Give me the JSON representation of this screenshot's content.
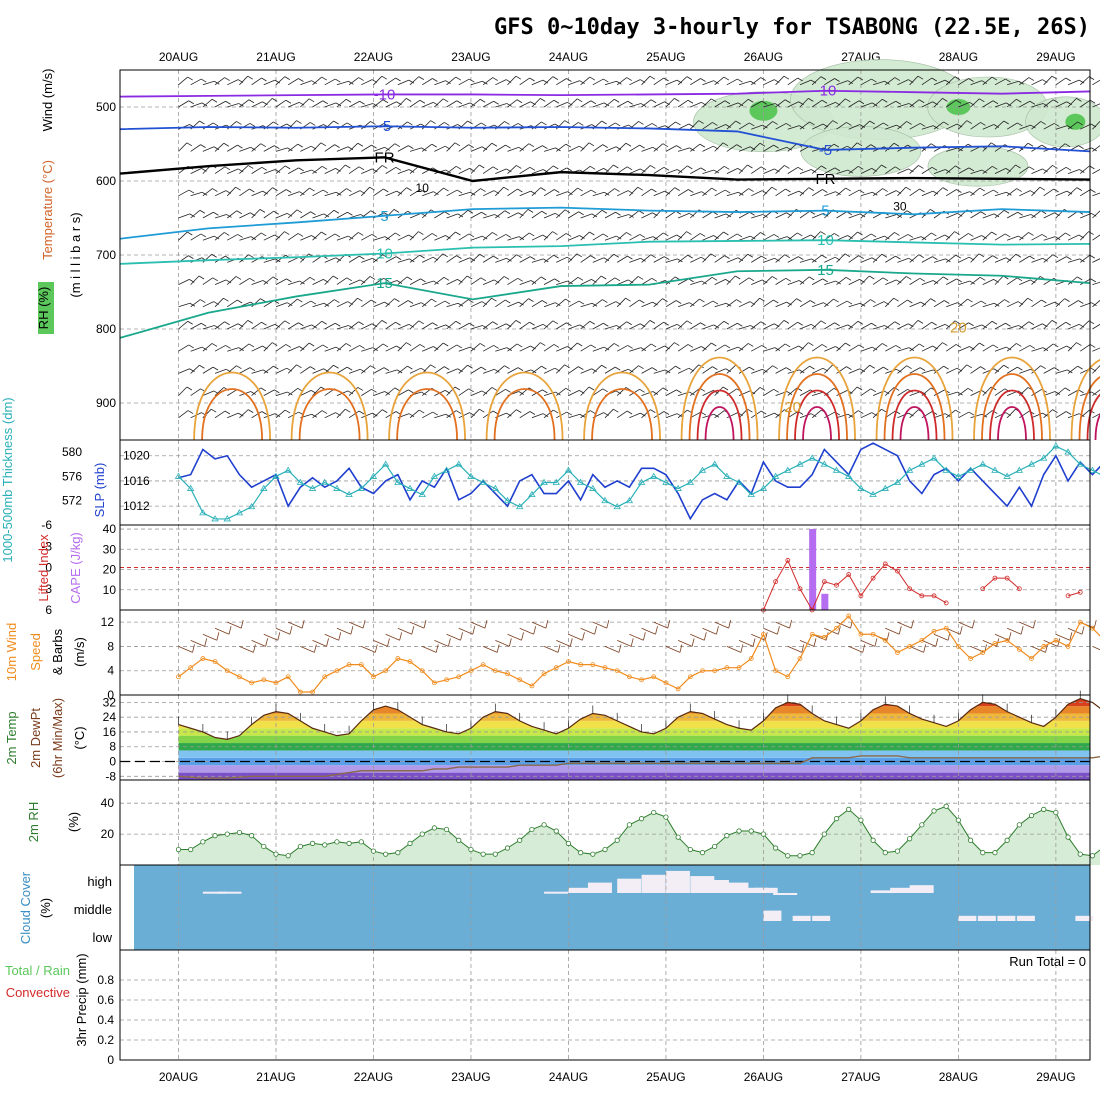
{
  "title": "GFS 0~10day 3-hourly for TSABONG (22.5E, 26S)",
  "dates": [
    "20AUG",
    "21AUG",
    "22AUG",
    "23AUG",
    "24AUG",
    "25AUG",
    "26AUG",
    "27AUG",
    "28AUG",
    "29AUG"
  ],
  "colors": {
    "grid": "#9a9a9a",
    "wind": "#222222",
    "slp": "#1f3fcf",
    "thick": "#2ab0b8",
    "li": "#d22b2b",
    "cape": "#b46cf0",
    "speed": "#f08c1e",
    "rh2m": "#2e7d2e",
    "cloud_bg": "#6aaed6",
    "cloud_fill": "#f3eef6",
    "rh_shade": "#5cc85c"
  },
  "chart_data": [
    {
      "type": "contour",
      "panel": "upper-air",
      "ylabel_parts": {
        "rh": "RH (%)",
        "temp": "Temperature (°C)",
        "wind": "Wind (m/s)",
        "axis": "(m i l l i b a r s)"
      },
      "yticks": [
        500,
        600,
        700,
        800,
        900
      ],
      "ylim": [
        450,
        950
      ],
      "temperature_contour_labels": [
        "-10",
        "-5",
        "FR",
        "5",
        "10",
        "15",
        "20",
        "10",
        "-10",
        "-5",
        "FR",
        "5",
        "10",
        "15",
        "20",
        "10",
        "30"
      ],
      "contours": [
        {
          "label": "-10",
          "color": "#8a2be2",
          "p": [
            486,
            485,
            484,
            483,
            483,
            484,
            483,
            482,
            478,
            480,
            482,
            479
          ]
        },
        {
          "label": "-5",
          "color": "#2251d4",
          "p": [
            530,
            527,
            528,
            526,
            528,
            527,
            529,
            533,
            558,
            555,
            553,
            560
          ]
        },
        {
          "label": "FR",
          "color": "#000000",
          "p": [
            590,
            580,
            572,
            568,
            600,
            588,
            592,
            598,
            597,
            596,
            597,
            598
          ]
        },
        {
          "label": "5",
          "color": "#1f9bd6",
          "p": [
            678,
            664,
            656,
            647,
            638,
            636,
            640,
            642,
            640,
            645,
            638,
            642
          ]
        },
        {
          "label": "10",
          "color": "#2abfb0",
          "p": [
            712,
            707,
            703,
            698,
            690,
            688,
            682,
            681,
            680,
            683,
            686,
            685
          ]
        },
        {
          "label": "15",
          "color": "#1aa88c",
          "p": [
            812,
            778,
            756,
            738,
            760,
            742,
            740,
            722,
            720,
            725,
            728,
            738
          ]
        }
      ]
    },
    {
      "type": "line",
      "panel": "pressure",
      "labels": {
        "thick": "1000-500mb Thickness (dm)",
        "slp": "SLP (mb)"
      },
      "yticks_left": [
        572,
        576,
        580
      ],
      "yticks_right": [
        1012,
        1016,
        1020
      ],
      "ylim_left": [
        568,
        582
      ],
      "ylim_right": [
        1009,
        1022.5
      ],
      "series": [
        {
          "name": "SLP",
          "axis": "right",
          "values": [
            1016.5,
            1017,
            1021,
            1019.5,
            1020,
            1017,
            1015,
            1016,
            1017,
            1012,
            1015,
            1016.5,
            1015,
            1016,
            1018,
            1015,
            1014,
            1016,
            1017,
            1013,
            1016,
            1015,
            1018,
            1013,
            1014,
            1016,
            1014,
            1012,
            1016,
            1017,
            1014,
            1014,
            1016,
            1013,
            1017,
            1015,
            1016,
            1015,
            1018,
            1018,
            1017,
            1014,
            1010,
            1013,
            1014,
            1013,
            1016,
            1014,
            1019,
            1016,
            1015,
            1015,
            1017,
            1021,
            1019,
            1017,
            1021,
            1022,
            1021,
            1020,
            1016,
            1014,
            1017,
            1018,
            1016,
            1018,
            1016,
            1014,
            1012,
            1015,
            1012,
            1017,
            1020,
            1016,
            1019,
            1017,
            1019,
            1021,
            1017,
            1018,
            1022
          ]
        },
        {
          "name": "Thickness",
          "axis": "left",
          "values": [
            576,
            574,
            570,
            569,
            569,
            570,
            571,
            574,
            576,
            577,
            575,
            574,
            575,
            574,
            573,
            574,
            576,
            578,
            575,
            574,
            573,
            576,
            577,
            578,
            576,
            575,
            574,
            572,
            571,
            573,
            575,
            575,
            577,
            575,
            574,
            572,
            571,
            572,
            575,
            576,
            575,
            574,
            575,
            577,
            578,
            576,
            575,
            573,
            574,
            576,
            577,
            578,
            579,
            578,
            577,
            576,
            574,
            573,
            574,
            575,
            577,
            578,
            579,
            577,
            576,
            577,
            578,
            577,
            576,
            577,
            578,
            579,
            581,
            580,
            578,
            577,
            576,
            574,
            575,
            574,
            573
          ]
        }
      ]
    },
    {
      "type": "bar+line",
      "panel": "stability",
      "labels": {
        "li": "Lifted Index",
        "cape": "CAPE (J/kg)"
      },
      "yticks_left": [
        "-6",
        "-3",
        "0",
        "3",
        "6"
      ],
      "yticks_right": [
        "10",
        "20",
        "30",
        "40"
      ],
      "li_values": [
        null,
        null,
        null,
        null,
        null,
        null,
        null,
        null,
        null,
        null,
        null,
        null,
        null,
        null,
        null,
        null,
        null,
        null,
        null,
        null,
        null,
        null,
        null,
        null,
        null,
        null,
        null,
        null,
        null,
        null,
        null,
        null,
        null,
        null,
        null,
        null,
        null,
        null,
        null,
        null,
        null,
        null,
        null,
        null,
        null,
        null,
        null,
        null,
        6,
        2,
        -1,
        3,
        6,
        2,
        2.5,
        1,
        4,
        1.5,
        -0.5,
        0.5,
        3,
        4,
        4,
        5,
        null,
        null,
        3,
        1.5,
        1.5,
        3,
        null,
        null,
        null,
        4,
        3.5,
        null,
        null,
        null,
        null,
        null
      ],
      "cape_bars": [
        {
          "day": 6.5,
          "value": 40
        },
        {
          "day": 6.625,
          "value": 8
        }
      ],
      "li_zero_line": "0"
    },
    {
      "type": "line",
      "panel": "wind10m",
      "labels": {
        "main": "10m Wind",
        "speed": "Speed",
        "barbs": "& Barbs",
        "unit": "(m/s)"
      },
      "yticks": [
        0,
        4,
        8,
        12
      ],
      "ylim": [
        0,
        14
      ],
      "values": [
        3,
        4.5,
        6,
        5.5,
        4,
        3,
        2,
        2.5,
        2,
        3,
        0.5,
        0.5,
        3,
        4,
        5,
        5,
        3,
        4,
        6,
        5.5,
        4,
        2,
        2.5,
        3,
        4,
        5,
        4,
        3.5,
        2.5,
        1.5,
        3.5,
        4.5,
        5.5,
        5,
        5,
        4.5,
        4,
        3,
        2.5,
        3,
        2,
        1,
        3,
        4,
        4,
        4.5,
        4.5,
        6,
        10,
        4,
        3,
        6,
        10,
        9.5,
        11,
        13,
        10,
        10,
        9,
        7,
        8,
        9,
        10.5,
        11,
        8,
        6,
        7,
        8.5,
        9,
        7.5,
        6,
        8,
        9,
        8,
        12,
        11,
        9,
        8,
        6,
        4,
        3
      ]
    },
    {
      "type": "area",
      "panel": "temp2m",
      "labels": {
        "main": "2m Temp",
        "dewpt": "2m DewPt",
        "minmax": "(6hr Min/Max)",
        "unit": "(°C)"
      },
      "yticks": [
        "-8",
        "0",
        "8",
        "16",
        "24",
        "32"
      ],
      "ylim": [
        -10,
        36
      ],
      "temp": [
        20,
        18,
        16,
        13,
        12,
        14,
        20,
        25,
        27,
        26,
        22,
        18,
        16,
        14,
        15,
        22,
        28,
        30,
        28,
        24,
        20,
        18,
        16,
        15,
        18,
        24,
        27,
        26,
        22,
        19,
        17,
        15,
        18,
        23,
        26,
        25,
        22,
        19,
        16,
        15,
        18,
        24,
        27,
        26,
        23,
        20,
        18,
        17,
        22,
        29,
        32,
        31,
        26,
        22,
        20,
        18,
        22,
        28,
        31,
        30,
        26,
        23,
        21,
        19,
        22,
        28,
        32,
        31,
        27,
        24,
        21,
        19,
        24,
        31,
        34,
        32,
        27,
        22,
        19,
        17,
        18
      ],
      "dewpt": [
        -8,
        -8.5,
        -9,
        -9,
        -9,
        -8.5,
        -8,
        -8,
        -8,
        -8,
        -8,
        -8,
        -8,
        -7,
        -6,
        -5,
        -5,
        -5,
        -5,
        -5,
        -5,
        -4,
        -4,
        -3,
        -3,
        -3,
        -3,
        -3,
        -2,
        -2,
        -2,
        -2,
        -1,
        -1,
        -1,
        -1,
        -1,
        -1,
        -1,
        -1,
        -1,
        -1,
        -1,
        -1,
        -1,
        -1,
        -1,
        -1,
        -1,
        -1,
        -1,
        -1,
        2,
        2,
        2,
        2,
        3,
        3,
        3,
        3,
        2,
        2,
        2,
        2,
        2,
        2,
        2,
        2,
        2,
        2,
        2,
        2,
        2,
        2,
        2,
        2,
        3,
        3,
        3,
        5,
        5
      ]
    },
    {
      "type": "area",
      "panel": "rh2m",
      "labels": {
        "main": "2m RH",
        "unit": "(%)"
      },
      "yticks": [
        20,
        40
      ],
      "ylim": [
        0,
        55
      ],
      "values": [
        10,
        10,
        15,
        19,
        20,
        21,
        19,
        12,
        7,
        6,
        12,
        14,
        13,
        15,
        14,
        15,
        9,
        7,
        8,
        14,
        20,
        24,
        23,
        16,
        10,
        7,
        7,
        11,
        16,
        23,
        26,
        22,
        14,
        8,
        7,
        10,
        16,
        26,
        30,
        34,
        31,
        18,
        10,
        8,
        12,
        19,
        22,
        22,
        20,
        11,
        6,
        6,
        8,
        20,
        30,
        36,
        29,
        16,
        8,
        9,
        17,
        26,
        35,
        38,
        29,
        16,
        8,
        8,
        16,
        26,
        32,
        36,
        34,
        18,
        7,
        6,
        12,
        30,
        45,
        52,
        48
      ]
    },
    {
      "type": "heatmap",
      "panel": "cloud",
      "labels": {
        "main": "Cloud Cover",
        "unit": "(%)"
      },
      "levels": [
        "high",
        "middle",
        "low"
      ],
      "high": [
        [
          0.25,
          5
        ],
        [
          0.4,
          5
        ],
        [
          3.75,
          5
        ],
        [
          4,
          20
        ],
        [
          4.2,
          40
        ],
        [
          4.5,
          55
        ],
        [
          4.75,
          70
        ],
        [
          5,
          85
        ],
        [
          5.25,
          65
        ],
        [
          5.4,
          50
        ],
        [
          5.6,
          40
        ],
        [
          5.8,
          20
        ],
        [
          5.9,
          20
        ],
        [
          6.1,
          0
        ],
        [
          7.1,
          10
        ],
        [
          7.3,
          20
        ],
        [
          7.5,
          30
        ]
      ],
      "middle": [
        [
          6.0,
          40
        ],
        [
          6.3,
          20
        ],
        [
          6.5,
          20
        ],
        [
          8.0,
          20
        ],
        [
          8.2,
          20
        ],
        [
          8.4,
          20
        ],
        [
          8.6,
          20
        ],
        [
          9.2,
          20
        ]
      ]
    },
    {
      "type": "bar",
      "panel": "precip",
      "labels": {
        "main": "3hr Precip (mm)",
        "legend_total": "Total / Rain",
        "legend_conv": "Convective",
        "run_total": "Run Total = 0"
      },
      "yticks": [
        "0",
        "0.2",
        "0.4",
        "0.6",
        "0.8"
      ],
      "ylim": [
        0,
        1
      ],
      "values": []
    }
  ]
}
